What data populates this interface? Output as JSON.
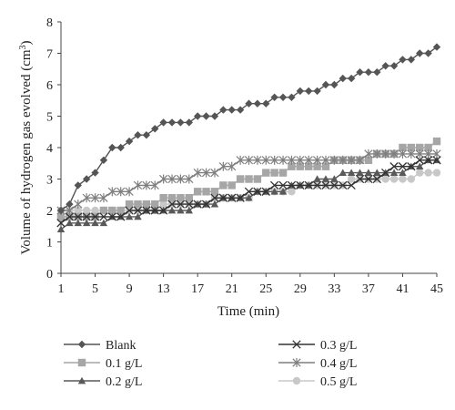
{
  "chart_data": {
    "type": "line",
    "title": "",
    "xlabel": "Time (min)",
    "ylabel": "Volume of hydrogen gas evolved (cm",
    "ylabel_superscript": "3",
    "ylabel_suffix": ")",
    "xlim": [
      1,
      45
    ],
    "ylim": [
      0,
      8
    ],
    "x_ticks": [
      1,
      5,
      9,
      13,
      17,
      21,
      25,
      29,
      33,
      37,
      41,
      45
    ],
    "y_ticks": [
      0,
      1,
      2,
      3,
      4,
      5,
      6,
      7,
      8
    ],
    "grid": false,
    "legend_position": "bottom",
    "x": [
      1,
      2,
      3,
      4,
      5,
      6,
      7,
      8,
      9,
      10,
      11,
      12,
      13,
      14,
      15,
      16,
      17,
      18,
      19,
      20,
      21,
      22,
      23,
      24,
      25,
      26,
      27,
      28,
      29,
      30,
      31,
      32,
      33,
      34,
      35,
      36,
      37,
      38,
      39,
      40,
      41,
      42,
      43,
      44,
      45
    ],
    "series": [
      {
        "name": "Blank",
        "marker": "diamond",
        "color": "#555555",
        "values": [
          2.0,
          2.2,
          2.8,
          3.0,
          3.2,
          3.6,
          4.0,
          4.0,
          4.2,
          4.4,
          4.4,
          4.6,
          4.8,
          4.8,
          4.8,
          4.8,
          5.0,
          5.0,
          5.0,
          5.2,
          5.2,
          5.2,
          5.4,
          5.4,
          5.4,
          5.6,
          5.6,
          5.6,
          5.8,
          5.8,
          5.8,
          6.0,
          6.0,
          6.2,
          6.2,
          6.4,
          6.4,
          6.4,
          6.6,
          6.6,
          6.8,
          6.8,
          7.0,
          7.0,
          7.2
        ]
      },
      {
        "name": "0.1 g/L",
        "marker": "square",
        "color": "#a6a6a6",
        "values": [
          1.8,
          1.8,
          1.8,
          1.8,
          1.8,
          2.0,
          2.0,
          2.0,
          2.2,
          2.2,
          2.2,
          2.2,
          2.4,
          2.4,
          2.4,
          2.4,
          2.6,
          2.6,
          2.6,
          2.8,
          2.8,
          3.0,
          3.0,
          3.0,
          3.2,
          3.2,
          3.2,
          3.4,
          3.4,
          3.4,
          3.4,
          3.4,
          3.6,
          3.6,
          3.6,
          3.6,
          3.6,
          3.8,
          3.8,
          3.8,
          4.0,
          4.0,
          4.0,
          4.0,
          4.2
        ]
      },
      {
        "name": "0.2 g/L",
        "marker": "triangle",
        "color": "#595959",
        "values": [
          1.4,
          1.6,
          1.6,
          1.6,
          1.6,
          1.6,
          1.8,
          1.8,
          1.8,
          1.8,
          2.0,
          2.0,
          2.0,
          2.0,
          2.0,
          2.0,
          2.2,
          2.2,
          2.2,
          2.4,
          2.4,
          2.4,
          2.4,
          2.6,
          2.6,
          2.6,
          2.6,
          2.8,
          2.8,
          2.8,
          3.0,
          3.0,
          3.0,
          3.2,
          3.2,
          3.2,
          3.2,
          3.2,
          3.2,
          3.2,
          3.2,
          3.4,
          3.4,
          3.6,
          3.6
        ]
      },
      {
        "name": "0.3 g/L",
        "marker": "x",
        "color": "#333333",
        "values": [
          1.6,
          1.8,
          1.8,
          1.8,
          1.8,
          1.8,
          1.8,
          1.8,
          2.0,
          2.0,
          2.0,
          2.0,
          2.0,
          2.2,
          2.2,
          2.2,
          2.2,
          2.2,
          2.4,
          2.4,
          2.4,
          2.4,
          2.6,
          2.6,
          2.6,
          2.8,
          2.8,
          2.8,
          2.8,
          2.8,
          2.8,
          2.8,
          2.8,
          2.8,
          2.8,
          3.0,
          3.0,
          3.0,
          3.2,
          3.4,
          3.4,
          3.4,
          3.6,
          3.6,
          3.6
        ]
      },
      {
        "name": "0.4 g/L",
        "marker": "asterisk",
        "color": "#7f7f7f",
        "values": [
          2.0,
          2.0,
          2.2,
          2.4,
          2.4,
          2.4,
          2.6,
          2.6,
          2.6,
          2.8,
          2.8,
          2.8,
          3.0,
          3.0,
          3.0,
          3.0,
          3.2,
          3.2,
          3.2,
          3.4,
          3.4,
          3.6,
          3.6,
          3.6,
          3.6,
          3.6,
          3.6,
          3.6,
          3.6,
          3.6,
          3.6,
          3.6,
          3.6,
          3.6,
          3.6,
          3.6,
          3.8,
          3.8,
          3.8,
          3.8,
          3.8,
          3.8,
          3.8,
          3.8,
          3.8
        ]
      },
      {
        "name": "0.5 g/L",
        "marker": "circle",
        "color": "#c8c8c8",
        "values": [
          2.0,
          2.0,
          2.0,
          2.0,
          2.0,
          2.0,
          2.0,
          2.0,
          2.0,
          2.0,
          2.0,
          2.0,
          2.2,
          2.2,
          2.2,
          2.2,
          2.2,
          2.2,
          2.4,
          2.4,
          2.4,
          2.4,
          2.4,
          2.6,
          2.6,
          2.6,
          2.6,
          2.6,
          2.8,
          2.8,
          2.8,
          2.8,
          2.8,
          2.8,
          3.0,
          3.0,
          3.0,
          3.0,
          3.0,
          3.0,
          3.0,
          3.0,
          3.2,
          3.2,
          3.2
        ]
      }
    ]
  }
}
